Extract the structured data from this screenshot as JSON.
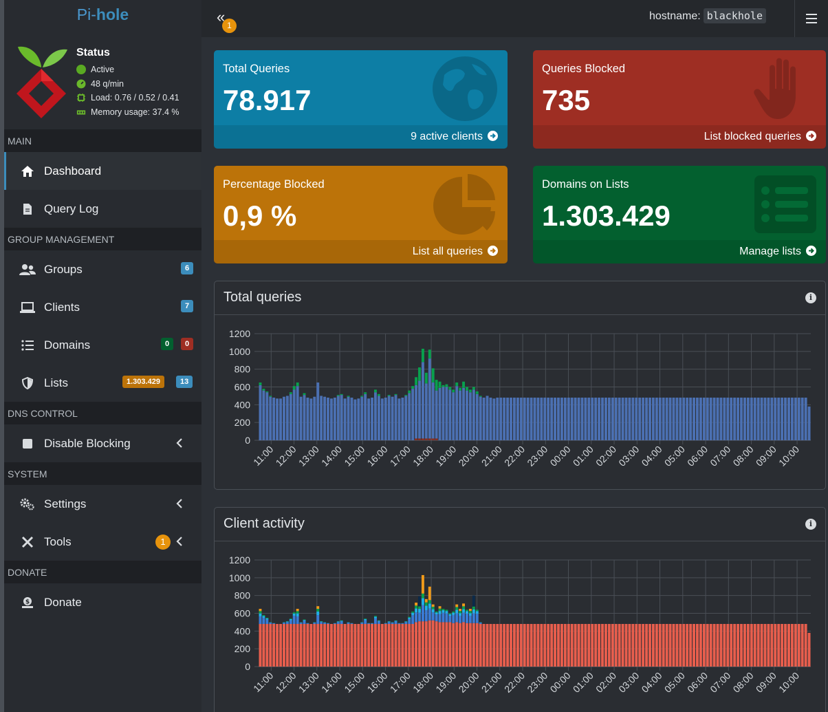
{
  "app": {
    "logo_prefix": "Pi-",
    "logo_bold": "hole"
  },
  "status": {
    "title": "Status",
    "active": "Active",
    "rate": "48 q/min",
    "load": "Load: 0.76 / 0.52 / 0.41",
    "memory": "Memory usage: 37.4 %"
  },
  "sidebar": {
    "sections": {
      "main": "MAIN",
      "group": "GROUP MANAGEMENT",
      "dns": "DNS CONTROL",
      "system": "SYSTEM",
      "donate": "DONATE"
    },
    "items": {
      "dashboard": "Dashboard",
      "querylog": "Query Log",
      "groups": "Groups",
      "clients": "Clients",
      "domains": "Domains",
      "lists": "Lists",
      "disable": "Disable Blocking",
      "settings": "Settings",
      "tools": "Tools",
      "donate": "Donate"
    },
    "badges": {
      "groups": "6",
      "clients": "7",
      "domains_allowed": "0",
      "domains_denied": "0",
      "lists_domains": "1.303.429",
      "lists_count": "13",
      "tools": "1"
    }
  },
  "topbar": {
    "toggle_badge": "1",
    "hostname_label": "hostname:",
    "hostname_value": "blackhole"
  },
  "boxes": {
    "total": {
      "label": "Total Queries",
      "value": "78.917",
      "footer": "9 active clients"
    },
    "blocked": {
      "label": "Queries Blocked",
      "value": "735",
      "footer": "List blocked queries"
    },
    "percent": {
      "label": "Percentage Blocked",
      "value": "0,9 %",
      "footer": "List all queries"
    },
    "domains": {
      "label": "Domains on Lists",
      "value": "1.303.429",
      "footer": "Manage lists"
    }
  },
  "panels": {
    "queries_title": "Total queries",
    "clients_title": "Client activity"
  },
  "colors": {
    "blue": "#0d7ea5",
    "red": "#9e2e23",
    "orange": "#bc7309",
    "green": "#03602f",
    "bar_blue": "#4b70b2",
    "bar_green": "#08a04d",
    "bar_red": "#8a2d1f",
    "client_red": "#e85e4d"
  },
  "chart_data": [
    {
      "type": "bar",
      "stacked": true,
      "ylim": [
        0,
        1200
      ],
      "yticks": [
        0,
        200,
        400,
        600,
        800,
        1000,
        1200
      ],
      "xticks": [
        "11:00",
        "12:00",
        "13:00",
        "14:00",
        "15:00",
        "16:00",
        "17:00",
        "18:00",
        "19:00",
        "20:00",
        "21:00",
        "22:00",
        "23:00",
        "00:00",
        "01:00",
        "02:00",
        "03:00",
        "04:00",
        "05:00",
        "06:00",
        "07:00",
        "08:00",
        "09:00",
        "10:00"
      ],
      "grid": true,
      "series": [
        {
          "values": [
            620,
            560,
            540,
            490,
            480,
            470,
            470,
            490,
            500,
            520,
            570,
            610,
            490,
            510,
            480,
            470,
            490,
            650,
            500,
            490,
            480,
            470,
            480,
            500,
            510,
            470,
            490,
            480,
            460,
            470,
            490,
            520,
            470,
            480,
            540,
            500,
            470,
            480,
            500,
            490,
            510,
            470,
            480,
            500,
            530,
            580,
            620,
            670,
            880,
            640,
            920,
            650,
            560,
            590,
            600,
            600,
            570,
            540,
            610,
            560,
            590,
            560,
            540,
            570,
            520,
            490,
            480,
            500,
            480,
            470,
            480,
            480,
            480,
            480,
            480,
            480,
            480,
            480,
            480,
            480,
            480,
            480,
            480,
            480,
            480,
            480,
            480,
            480,
            480,
            480,
            480,
            480,
            480,
            480,
            480,
            480,
            480,
            480,
            480,
            480,
            480,
            480,
            480,
            480,
            480,
            480,
            480,
            480,
            480,
            480,
            480,
            480,
            480,
            480,
            480,
            480,
            480,
            480,
            480,
            480,
            480,
            480,
            480,
            480,
            480,
            480,
            480,
            480,
            480,
            480,
            480,
            480,
            480,
            480,
            480,
            480,
            480,
            480,
            480,
            480,
            480,
            480,
            480,
            480,
            480,
            480,
            480,
            480,
            480,
            480,
            480,
            480,
            480,
            480,
            480,
            480,
            480,
            480,
            480,
            480,
            480,
            480,
            380
          ]
        },
        {
          "values": [
            30,
            20,
            10,
            10,
            0,
            0,
            0,
            0,
            0,
            20,
            40,
            40,
            0,
            20,
            0,
            0,
            0,
            0,
            0,
            0,
            0,
            0,
            0,
            10,
            10,
            0,
            10,
            0,
            0,
            0,
            10,
            20,
            0,
            0,
            30,
            20,
            0,
            0,
            10,
            0,
            10,
            0,
            0,
            10,
            30,
            30,
            90,
            150,
            150,
            120,
            100,
            160,
            120,
            70,
            20,
            30,
            30,
            30,
            40,
            30,
            70,
            40,
            30,
            30,
            30,
            10,
            0,
            0,
            0,
            0,
            0,
            0,
            0,
            0,
            0,
            0,
            0,
            0,
            0,
            0,
            0,
            0,
            0,
            0,
            0,
            0,
            0,
            0,
            0,
            0,
            0,
            0,
            0,
            0,
            0,
            0,
            0,
            0,
            0,
            0,
            0,
            0,
            0,
            0,
            0,
            0,
            0,
            0,
            0,
            0,
            0,
            0,
            0,
            0,
            0,
            0,
            0,
            0,
            0,
            0,
            0,
            0,
            0,
            0,
            0,
            0,
            0,
            0,
            0,
            0,
            0,
            0,
            0,
            0,
            0,
            0,
            0,
            0,
            0,
            0,
            0,
            0,
            0,
            0,
            0,
            0,
            0,
            0,
            0,
            0,
            0,
            0,
            0,
            0,
            0,
            0,
            0,
            0,
            0,
            0,
            0,
            0,
            0
          ]
        }
      ]
    },
    {
      "type": "bar",
      "stacked": true,
      "ylim": [
        0,
        1200
      ],
      "yticks": [
        0,
        200,
        400,
        600,
        800,
        1000,
        1200
      ],
      "xticks": [
        "11:00",
        "12:00",
        "13:00",
        "14:00",
        "15:00",
        "16:00",
        "17:00",
        "18:00",
        "19:00",
        "20:00",
        "21:00",
        "22:00",
        "23:00",
        "00:00",
        "01:00",
        "02:00",
        "03:00",
        "04:00",
        "05:00",
        "06:00",
        "07:00",
        "08:00",
        "09:00",
        "10:00"
      ],
      "grid": true,
      "base_values": [
        480,
        480,
        480,
        480,
        480,
        480,
        480,
        480,
        480,
        480,
        480,
        480,
        480,
        480,
        480,
        480,
        480,
        480,
        480,
        480,
        480,
        480,
        480,
        480,
        480,
        480,
        480,
        480,
        480,
        480,
        480,
        480,
        480,
        480,
        480,
        480,
        480,
        480,
        480,
        480,
        480,
        480,
        480,
        480,
        480,
        480,
        500,
        510,
        510,
        510,
        520,
        520,
        510,
        500,
        500,
        500,
        500,
        490,
        500,
        490,
        500,
        490,
        490,
        490,
        490,
        480,
        480,
        480,
        480,
        480,
        480,
        480,
        480,
        480,
        480,
        480,
        480,
        480,
        480,
        480,
        480,
        480,
        480,
        480,
        480,
        480,
        480,
        480,
        480,
        480,
        480,
        480,
        480,
        480,
        480,
        480,
        480,
        480,
        480,
        480,
        480,
        480,
        480,
        480,
        480,
        480,
        480,
        480,
        480,
        480,
        480,
        480,
        480,
        480,
        480,
        480,
        480,
        480,
        480,
        480,
        480,
        480,
        480,
        480,
        480,
        480,
        480,
        480,
        480,
        480,
        480,
        480,
        480,
        480,
        480,
        480,
        480,
        480,
        480,
        480,
        480,
        480,
        480,
        480,
        480,
        480,
        480,
        480,
        480,
        480,
        480,
        480,
        480,
        480,
        480,
        480,
        480,
        480,
        480,
        480,
        480,
        480,
        380
      ],
      "top_values": [
        650,
        580,
        550,
        500,
        490,
        480,
        480,
        500,
        510,
        540,
        610,
        650,
        500,
        530,
        490,
        480,
        500,
        680,
        510,
        500,
        490,
        480,
        490,
        510,
        520,
        480,
        500,
        490,
        470,
        480,
        500,
        540,
        490,
        490,
        570,
        520,
        480,
        490,
        510,
        500,
        520,
        490,
        490,
        510,
        560,
        620,
        720,
        790,
        1030,
        760,
        900,
        700,
        620,
        680,
        650,
        640,
        600,
        620,
        700,
        650,
        710,
        640,
        650,
        800,
        640,
        500,
        480,
        480,
        480,
        480,
        480,
        480,
        480,
        480,
        480,
        480,
        480,
        480,
        480,
        480,
        480,
        480,
        480,
        480,
        480,
        480,
        480,
        480,
        480,
        480,
        480,
        480,
        480,
        480,
        480,
        480,
        480,
        480,
        480,
        480,
        480,
        480,
        480,
        480,
        480,
        480,
        480,
        480,
        480,
        480,
        480,
        480,
        480,
        480,
        480,
        480,
        480,
        480,
        480,
        480,
        480,
        480,
        480,
        480,
        480,
        480,
        480,
        480,
        480,
        480,
        480,
        480,
        480,
        480,
        480,
        480,
        480,
        480,
        480,
        480,
        480,
        480,
        480,
        480,
        480,
        480,
        480,
        480,
        480,
        480,
        480,
        480,
        480,
        480,
        480,
        480,
        480,
        480,
        480,
        480,
        480,
        480,
        380
      ]
    }
  ]
}
